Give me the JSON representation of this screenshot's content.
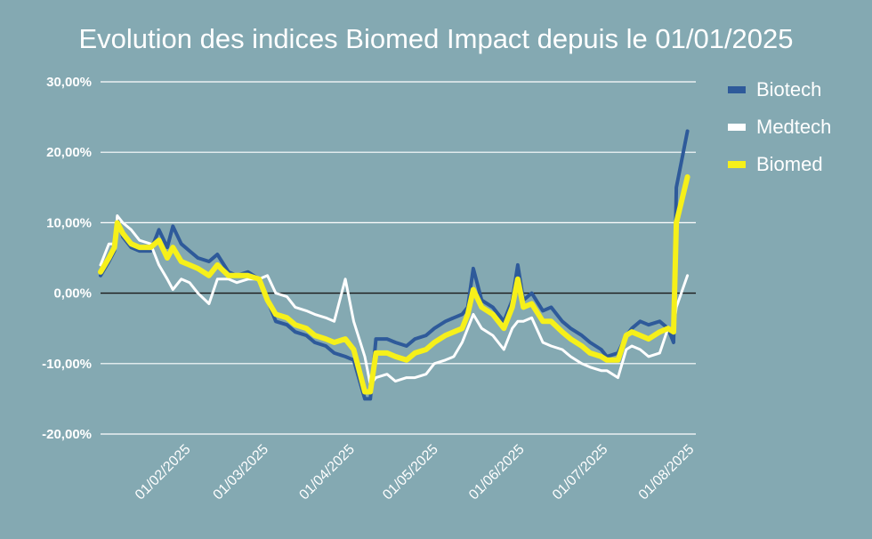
{
  "title": "Evolution des indices Biomed Impact depuis le 01/01/2025",
  "chart_data": {
    "type": "line",
    "title": "Evolution des indices Biomed Impact depuis le 01/01/2025",
    "xlabel": "",
    "ylabel": "",
    "x_type": "date",
    "x_range": [
      "2025-01-02",
      "2025-08-04"
    ],
    "ylim": [
      -20,
      30
    ],
    "y_ticks": [
      30,
      20,
      10,
      0,
      -10,
      -20
    ],
    "y_tick_labels": [
      "30,00%",
      "20,00%",
      "10,00%",
      "0,00%",
      "-10,00%",
      "-20,00%"
    ],
    "x_ticks": [
      "2025-02-01",
      "2025-03-01",
      "2025-04-01",
      "2025-05-01",
      "2025-06-01",
      "2025-07-01",
      "2025-08-01"
    ],
    "x_tick_labels": [
      "01/02/2025",
      "01/03/2025",
      "01/04/2025",
      "01/05/2025",
      "01/06/2025",
      "01/07/2025",
      "01/08/2025"
    ],
    "grid": "horizontal",
    "legend_position": "right",
    "series": [
      {
        "name": "Biotech",
        "color": "#2e5a9a",
        "points": [
          [
            "2025-01-02",
            2.5
          ],
          [
            "2025-01-05",
            4.5
          ],
          [
            "2025-01-07",
            6
          ],
          [
            "2025-01-08",
            10.5
          ],
          [
            "2025-01-10",
            8
          ],
          [
            "2025-01-13",
            6.5
          ],
          [
            "2025-01-16",
            6
          ],
          [
            "2025-01-20",
            6
          ],
          [
            "2025-01-23",
            9
          ],
          [
            "2025-01-26",
            6.5
          ],
          [
            "2025-01-28",
            9.5
          ],
          [
            "2025-01-31",
            7
          ],
          [
            "2025-02-03",
            6
          ],
          [
            "2025-02-06",
            5
          ],
          [
            "2025-02-10",
            4.5
          ],
          [
            "2025-02-13",
            5.5
          ],
          [
            "2025-02-17",
            3
          ],
          [
            "2025-02-20",
            2.5
          ],
          [
            "2025-02-24",
            3
          ],
          [
            "2025-02-28",
            2
          ],
          [
            "2025-03-03",
            -1
          ],
          [
            "2025-03-06",
            -4
          ],
          [
            "2025-03-10",
            -4.5
          ],
          [
            "2025-03-13",
            -5.5
          ],
          [
            "2025-03-17",
            -6
          ],
          [
            "2025-03-20",
            -7
          ],
          [
            "2025-03-24",
            -7.5
          ],
          [
            "2025-03-27",
            -8.5
          ],
          [
            "2025-03-31",
            -9
          ],
          [
            "2025-04-03",
            -9.5
          ],
          [
            "2025-04-07",
            -15
          ],
          [
            "2025-04-09",
            -15
          ],
          [
            "2025-04-11",
            -6.5
          ],
          [
            "2025-04-15",
            -6.5
          ],
          [
            "2025-04-18",
            -7
          ],
          [
            "2025-04-22",
            -7.5
          ],
          [
            "2025-04-25",
            -6.5
          ],
          [
            "2025-04-29",
            -6
          ],
          [
            "2025-05-02",
            -5
          ],
          [
            "2025-05-06",
            -4
          ],
          [
            "2025-05-09",
            -3.5
          ],
          [
            "2025-05-12",
            -3
          ],
          [
            "2025-05-14",
            -2
          ],
          [
            "2025-05-16",
            3.5
          ],
          [
            "2025-05-19",
            -1
          ],
          [
            "2025-05-23",
            -2
          ],
          [
            "2025-05-27",
            -4
          ],
          [
            "2025-05-30",
            -1
          ],
          [
            "2025-06-01",
            4
          ],
          [
            "2025-06-03",
            -1
          ],
          [
            "2025-06-06",
            0
          ],
          [
            "2025-06-10",
            -2.5
          ],
          [
            "2025-06-13",
            -2
          ],
          [
            "2025-06-17",
            -4
          ],
          [
            "2025-06-20",
            -5
          ],
          [
            "2025-06-24",
            -6
          ],
          [
            "2025-06-27",
            -7
          ],
          [
            "2025-07-01",
            -8
          ],
          [
            "2025-07-03",
            -9
          ],
          [
            "2025-07-07",
            -8.5
          ],
          [
            "2025-07-10",
            -6
          ],
          [
            "2025-07-12",
            -5
          ],
          [
            "2025-07-15",
            -4
          ],
          [
            "2025-07-18",
            -4.5
          ],
          [
            "2025-07-22",
            -4
          ],
          [
            "2025-07-25",
            -5
          ],
          [
            "2025-07-27",
            -7
          ],
          [
            "2025-07-28",
            15
          ],
          [
            "2025-08-01",
            23
          ]
        ]
      },
      {
        "name": "Medtech",
        "color": "#ffffff",
        "points": [
          [
            "2025-01-02",
            4
          ],
          [
            "2025-01-05",
            7
          ],
          [
            "2025-01-07",
            7
          ],
          [
            "2025-01-08",
            11
          ],
          [
            "2025-01-10",
            10
          ],
          [
            "2025-01-13",
            9
          ],
          [
            "2025-01-16",
            7.5
          ],
          [
            "2025-01-20",
            7
          ],
          [
            "2025-01-23",
            4
          ],
          [
            "2025-01-26",
            2
          ],
          [
            "2025-01-28",
            0.5
          ],
          [
            "2025-01-31",
            2
          ],
          [
            "2025-02-03",
            1.5
          ],
          [
            "2025-02-06",
            0
          ],
          [
            "2025-02-10",
            -1.5
          ],
          [
            "2025-02-13",
            2
          ],
          [
            "2025-02-17",
            2
          ],
          [
            "2025-02-20",
            1.5
          ],
          [
            "2025-02-24",
            2
          ],
          [
            "2025-02-28",
            2
          ],
          [
            "2025-03-03",
            2.5
          ],
          [
            "2025-03-06",
            0
          ],
          [
            "2025-03-10",
            -0.5
          ],
          [
            "2025-03-13",
            -2
          ],
          [
            "2025-03-17",
            -2.5
          ],
          [
            "2025-03-20",
            -3
          ],
          [
            "2025-03-24",
            -3.5
          ],
          [
            "2025-03-27",
            -4
          ],
          [
            "2025-03-31",
            2
          ],
          [
            "2025-04-03",
            -4
          ],
          [
            "2025-04-07",
            -9
          ],
          [
            "2025-04-09",
            -13
          ],
          [
            "2025-04-11",
            -12
          ],
          [
            "2025-04-15",
            -11.5
          ],
          [
            "2025-04-18",
            -12.5
          ],
          [
            "2025-04-22",
            -12
          ],
          [
            "2025-04-25",
            -12
          ],
          [
            "2025-04-29",
            -11.5
          ],
          [
            "2025-05-02",
            -10
          ],
          [
            "2025-05-06",
            -9.5
          ],
          [
            "2025-05-09",
            -9
          ],
          [
            "2025-05-12",
            -7
          ],
          [
            "2025-05-14",
            -5
          ],
          [
            "2025-05-16",
            -3
          ],
          [
            "2025-05-19",
            -5
          ],
          [
            "2025-05-23",
            -6
          ],
          [
            "2025-05-27",
            -8
          ],
          [
            "2025-05-30",
            -5
          ],
          [
            "2025-06-01",
            -4
          ],
          [
            "2025-06-03",
            -4
          ],
          [
            "2025-06-06",
            -3.5
          ],
          [
            "2025-06-10",
            -7
          ],
          [
            "2025-06-13",
            -7.5
          ],
          [
            "2025-06-17",
            -8
          ],
          [
            "2025-06-20",
            -9
          ],
          [
            "2025-06-24",
            -10
          ],
          [
            "2025-06-27",
            -10.5
          ],
          [
            "2025-07-01",
            -11
          ],
          [
            "2025-07-03",
            -11
          ],
          [
            "2025-07-07",
            -12
          ],
          [
            "2025-07-10",
            -8
          ],
          [
            "2025-07-12",
            -7.5
          ],
          [
            "2025-07-15",
            -8
          ],
          [
            "2025-07-18",
            -9
          ],
          [
            "2025-07-22",
            -8.5
          ],
          [
            "2025-07-25",
            -5
          ],
          [
            "2025-07-27",
            -5
          ],
          [
            "2025-07-28",
            -2
          ],
          [
            "2025-08-01",
            2.5
          ]
        ]
      },
      {
        "name": "Biomed",
        "color": "#f6f01a",
        "points": [
          [
            "2025-01-02",
            3
          ],
          [
            "2025-01-05",
            5
          ],
          [
            "2025-01-07",
            6.5
          ],
          [
            "2025-01-08",
            10
          ],
          [
            "2025-01-10",
            8.5
          ],
          [
            "2025-01-13",
            7
          ],
          [
            "2025-01-16",
            6.5
          ],
          [
            "2025-01-20",
            6.5
          ],
          [
            "2025-01-23",
            7.5
          ],
          [
            "2025-01-26",
            5
          ],
          [
            "2025-01-28",
            6.5
          ],
          [
            "2025-01-31",
            4.5
          ],
          [
            "2025-02-03",
            4
          ],
          [
            "2025-02-06",
            3.5
          ],
          [
            "2025-02-10",
            2.5
          ],
          [
            "2025-02-13",
            4
          ],
          [
            "2025-02-17",
            2.5
          ],
          [
            "2025-02-20",
            2.5
          ],
          [
            "2025-02-24",
            2.5
          ],
          [
            "2025-02-28",
            2
          ],
          [
            "2025-03-03",
            -1
          ],
          [
            "2025-03-06",
            -3
          ],
          [
            "2025-03-10",
            -3.5
          ],
          [
            "2025-03-13",
            -4.5
          ],
          [
            "2025-03-17",
            -5
          ],
          [
            "2025-03-20",
            -6
          ],
          [
            "2025-03-24",
            -6.5
          ],
          [
            "2025-03-27",
            -7
          ],
          [
            "2025-03-31",
            -6.5
          ],
          [
            "2025-04-03",
            -8
          ],
          [
            "2025-04-07",
            -14
          ],
          [
            "2025-04-09",
            -14
          ],
          [
            "2025-04-11",
            -8.5
          ],
          [
            "2025-04-15",
            -8.5
          ],
          [
            "2025-04-18",
            -9
          ],
          [
            "2025-04-22",
            -9.5
          ],
          [
            "2025-04-25",
            -8.5
          ],
          [
            "2025-04-29",
            -8
          ],
          [
            "2025-05-02",
            -7
          ],
          [
            "2025-05-06",
            -6
          ],
          [
            "2025-05-09",
            -5.5
          ],
          [
            "2025-05-12",
            -5
          ],
          [
            "2025-05-14",
            -3
          ],
          [
            "2025-05-16",
            0.5
          ],
          [
            "2025-05-19",
            -2
          ],
          [
            "2025-05-23",
            -3
          ],
          [
            "2025-05-27",
            -5
          ],
          [
            "2025-05-30",
            -2
          ],
          [
            "2025-06-01",
            2
          ],
          [
            "2025-06-03",
            -2
          ],
          [
            "2025-06-06",
            -1.5
          ],
          [
            "2025-06-10",
            -4
          ],
          [
            "2025-06-13",
            -4
          ],
          [
            "2025-06-17",
            -5.5
          ],
          [
            "2025-06-20",
            -6.5
          ],
          [
            "2025-06-24",
            -7.5
          ],
          [
            "2025-06-27",
            -8.5
          ],
          [
            "2025-07-01",
            -9
          ],
          [
            "2025-07-03",
            -9.5
          ],
          [
            "2025-07-07",
            -9.5
          ],
          [
            "2025-07-10",
            -6
          ],
          [
            "2025-07-12",
            -5.5
          ],
          [
            "2025-07-15",
            -6
          ],
          [
            "2025-07-18",
            -6.5
          ],
          [
            "2025-07-22",
            -5.5
          ],
          [
            "2025-07-25",
            -5
          ],
          [
            "2025-07-27",
            -5.5
          ],
          [
            "2025-07-28",
            10
          ],
          [
            "2025-08-01",
            16.5
          ]
        ]
      }
    ]
  }
}
